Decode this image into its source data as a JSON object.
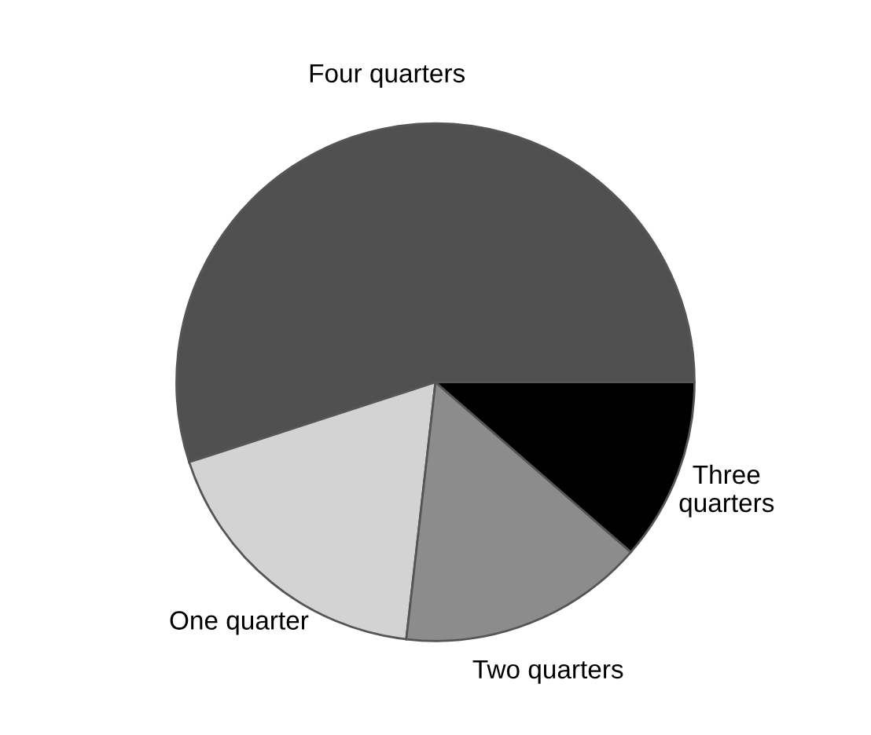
{
  "chart_data": {
    "type": "pie",
    "categories": [
      "Four quarters",
      "One quarter",
      "Two quarters",
      "Three\nquarters"
    ],
    "values": [
      55,
      18.2,
      15.4,
      11.4
    ],
    "colors": [
      "#505050",
      "#d3d3d3",
      "#8c8c8c",
      "#000000"
    ]
  }
}
